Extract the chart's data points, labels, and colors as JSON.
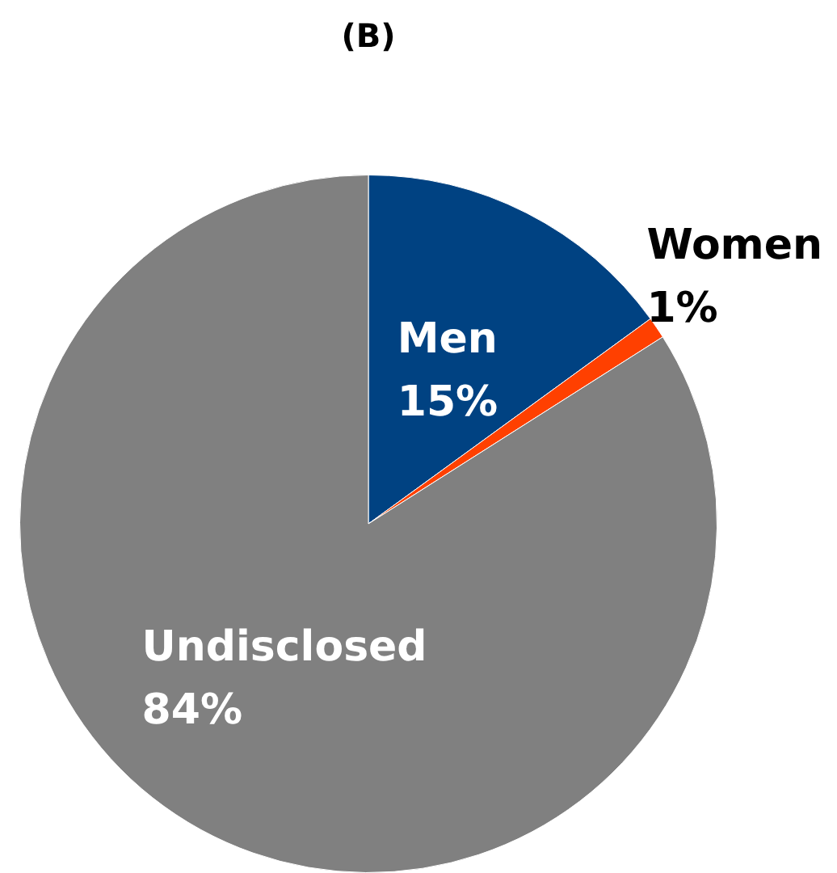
{
  "chart_data": {
    "type": "pie",
    "title": "(B)",
    "categories": [
      "Men",
      "Women",
      "Undisclosed"
    ],
    "values": [
      15,
      1,
      84
    ],
    "colors": [
      "#004282",
      "#ff4000",
      "#808080"
    ],
    "value_labels": [
      "15%",
      "1%",
      "84%"
    ]
  }
}
